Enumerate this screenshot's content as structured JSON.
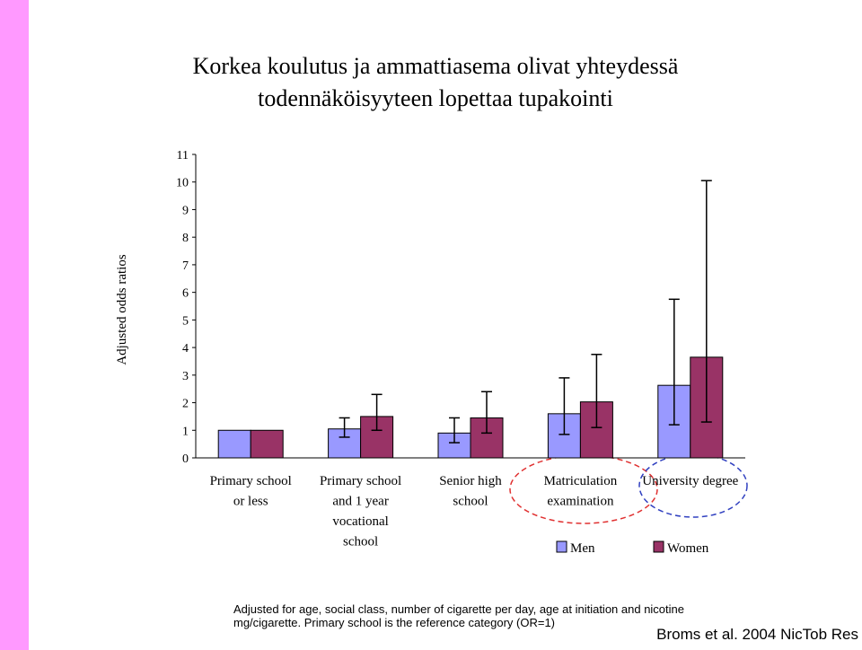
{
  "chart_data": {
    "type": "bar",
    "title": [
      "Korkea koulutus ja ammattiasema olivat yhteydessä",
      "todennäköisyyteen lopettaa tupakointi"
    ],
    "y_label": "Adjusted odds ratios",
    "categories": [
      [
        "Primary school",
        "or less"
      ],
      [
        "Primary school",
        "and 1 year",
        "vocational",
        "school"
      ],
      [
        "Senior high",
        "school"
      ],
      [
        "Matriculation",
        "examination"
      ],
      [
        "University degree"
      ]
    ],
    "series": [
      {
        "name": "Men",
        "color": "#9999ff",
        "values": [
          1,
          1.05,
          0.9,
          1.6,
          2.63
        ],
        "ci_low": [
          null,
          0.75,
          0.55,
          0.85,
          1.2
        ],
        "ci_high": [
          null,
          1.45,
          1.45,
          2.9,
          5.75
        ]
      },
      {
        "name": "Women",
        "color": "#993366",
        "values": [
          1,
          1.5,
          1.45,
          2.03,
          3.65
        ],
        "ci_low": [
          null,
          1.0,
          0.9,
          1.1,
          1.3
        ],
        "ci_high": [
          null,
          2.3,
          2.4,
          3.75,
          10.05
        ]
      }
    ],
    "ylim": [
      0,
      11
    ],
    "yticks": [
      0,
      1,
      2,
      3,
      4,
      5,
      6,
      7,
      8,
      9,
      10,
      11
    ],
    "notes": [
      "Adjusted for age, social class, number of cigarette per day, age at initiation and nicotine",
      "mg/cigarette. Primary school is the reference category (OR=1)"
    ],
    "source": "Broms et al. 2004  NicTob Res"
  }
}
